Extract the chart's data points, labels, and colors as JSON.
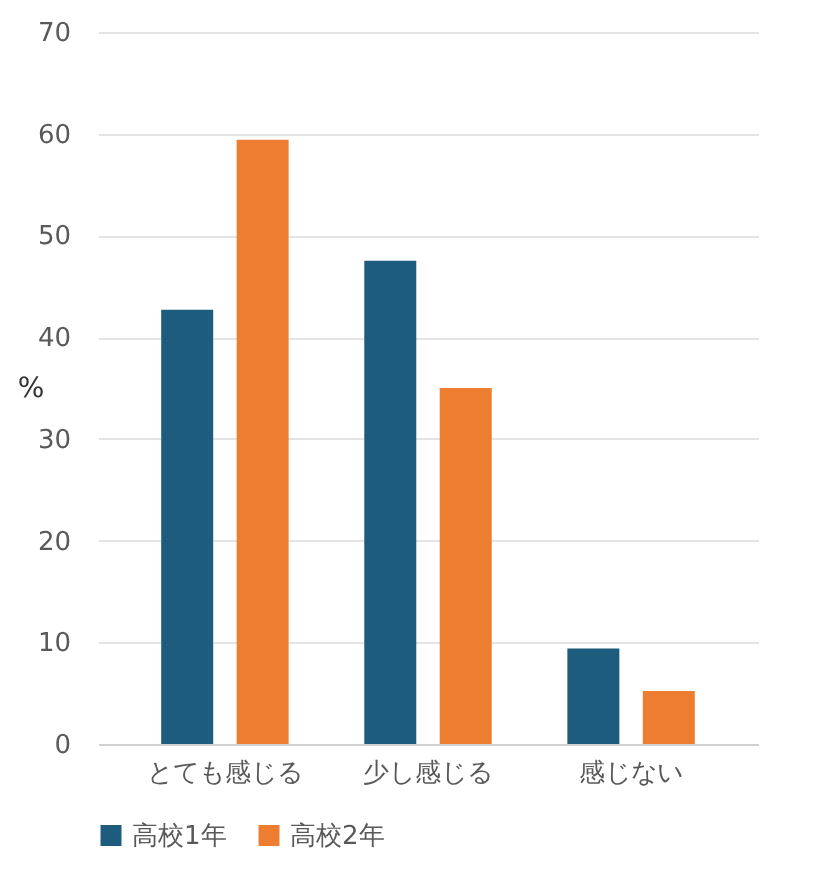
{
  "chart_data": {
    "type": "bar",
    "ylabel": "%",
    "categories": [
      "とても感じる",
      "少し感じる",
      "感じない"
    ],
    "series": [
      {
        "name": "高校1年",
        "color": "#1d5c7c",
        "values": [
          42.7,
          47.5,
          9.4
        ]
      },
      {
        "name": "高校2年",
        "color": "#ed7d31",
        "values": [
          59.4,
          35.0,
          5.2
        ]
      }
    ],
    "ylim": [
      0,
      70
    ],
    "yticks": [
      0,
      10,
      20,
      30,
      40,
      50,
      60,
      70
    ],
    "grid": "y",
    "legend": "bottom"
  }
}
